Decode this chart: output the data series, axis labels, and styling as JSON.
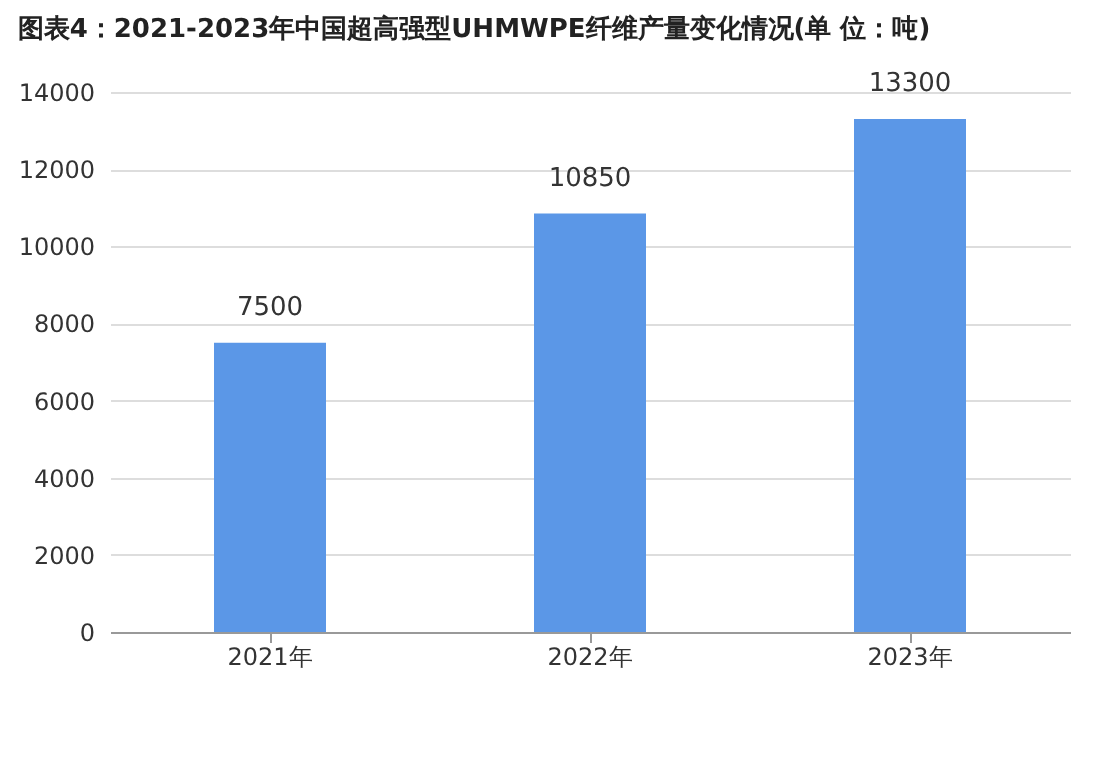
{
  "chart_data": {
    "type": "bar",
    "title": "图表4：2021-2023年中国超高强型UHMWPE纤维产量变化情况(单 位：吨)",
    "categories": [
      "2021年",
      "2022年",
      "2023年"
    ],
    "values": [
      7500,
      10850,
      13300
    ],
    "color": "#5b97e7",
    "ylim": [
      0,
      14000
    ],
    "yticks": [
      0,
      2000,
      4000,
      6000,
      8000,
      10000,
      12000,
      14000
    ],
    "grid": "y",
    "data_labels": true
  }
}
